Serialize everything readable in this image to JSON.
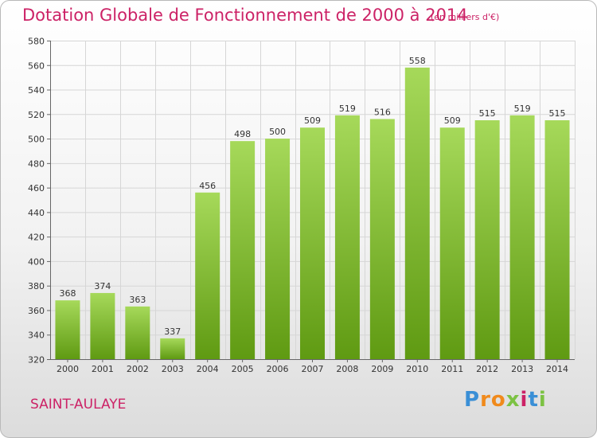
{
  "page": {
    "title": "Dotation Globale de Fonctionnement de 2000 à 2014",
    "subtitle": "(en milliers d'€)",
    "commune": "SAINT-AULAYE",
    "logo": {
      "letters": [
        "P",
        "r",
        "o",
        "x",
        "i",
        "t",
        "i"
      ],
      "colors": [
        "#3a8fd6",
        "#f08a1c",
        "#f08a1c",
        "#7cc243",
        "#cc2266",
        "#3a8fd6",
        "#7cc243"
      ]
    }
  },
  "colors": {
    "title": "#cc2266",
    "bar_light": "#a6d95a",
    "bar_dark": "#5f9a12",
    "grid": "#d6d6d6",
    "axis": "#666666"
  },
  "chart_data": {
    "type": "bar",
    "title": "Dotation Globale de Fonctionnement de 2000 à 2014",
    "subtitle": "(en milliers d'€)",
    "categories": [
      "2000",
      "2001",
      "2002",
      "2003",
      "2004",
      "2005",
      "2006",
      "2007",
      "2008",
      "2009",
      "2010",
      "2011",
      "2012",
      "2013",
      "2014"
    ],
    "values": [
      368,
      374,
      363,
      337,
      456,
      498,
      500,
      509,
      519,
      516,
      558,
      509,
      515,
      519,
      515
    ],
    "ylim": [
      320,
      580
    ],
    "yticks": [
      320,
      340,
      360,
      380,
      400,
      420,
      440,
      460,
      480,
      500,
      520,
      540,
      560,
      580
    ],
    "grid": true,
    "data_labels": true,
    "legend": "none"
  }
}
